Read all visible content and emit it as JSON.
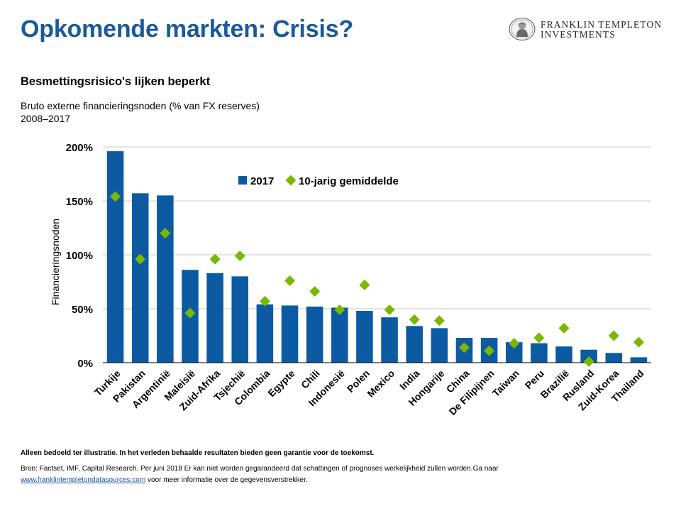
{
  "header": {
    "title": "Opkomende markten: Crisis?",
    "logo_line1": "FRANKLIN TEMPLETON",
    "logo_line2": "INVESTMENTS"
  },
  "subtitle": "Besmettingsrisico's lijken beperkt",
  "description_line1": "Bruto externe financieringsnoden (% van FX reserves)",
  "description_line2": "2008–2017",
  "chart_data": {
    "type": "bar",
    "ylabel": "Financieringsnoden",
    "xlabel": "",
    "ylim": [
      0,
      200
    ],
    "yticks": [
      0,
      50,
      100,
      150,
      200
    ],
    "ytick_labels": [
      "0%",
      "50%",
      "100%",
      "150%",
      "200%"
    ],
    "grid": true,
    "legend_position": "top-center",
    "categories": [
      "Turkije",
      "Pakistan",
      "Argentinië",
      "Maleisië",
      "Zuid-Afrika",
      "Tsjechië",
      "Colombia",
      "Egypte",
      "Chili",
      "Indonesië",
      "Polen",
      "Mexico",
      "India",
      "Hongarije",
      "China",
      "De Filipijnen",
      "Taiwan",
      "Peru",
      "Brazilië",
      "Rusland",
      "Zuid-Korea",
      "Thailand"
    ],
    "series": [
      {
        "name": "2017",
        "kind": "bar",
        "color": "#0b5aa2",
        "values": [
          196,
          157,
          155,
          86,
          83,
          80,
          54,
          53,
          52,
          51,
          48,
          42,
          34,
          32,
          23,
          23,
          19,
          18,
          15,
          12,
          9,
          5
        ]
      },
      {
        "name": "10-jarig gemiddelde",
        "kind": "marker",
        "color": "#7ab800",
        "values": [
          154,
          96,
          120,
          46,
          96,
          99,
          57,
          76,
          66,
          49,
          72,
          49,
          40,
          39,
          14,
          11,
          18,
          23,
          32,
          1,
          25,
          19
        ]
      }
    ]
  },
  "footer": {
    "disclaimer": "Alleen bedoeld ter illustratie. In het verleden behaalde resultaten bieden geen garantie voor de toekomst.",
    "source_line1": "Bron: Factset,  IMF, Capital Research. Per juni 2018 Er kan niet worden gegarandeerd dat schattingen  of prognoses werkelijkheid  zullen  worden.Ga naar",
    "source_link": "www.franklintempletondatasources.com",
    "source_line2_rest": "  voor meer informatie   over de gegevensverstrekker."
  }
}
